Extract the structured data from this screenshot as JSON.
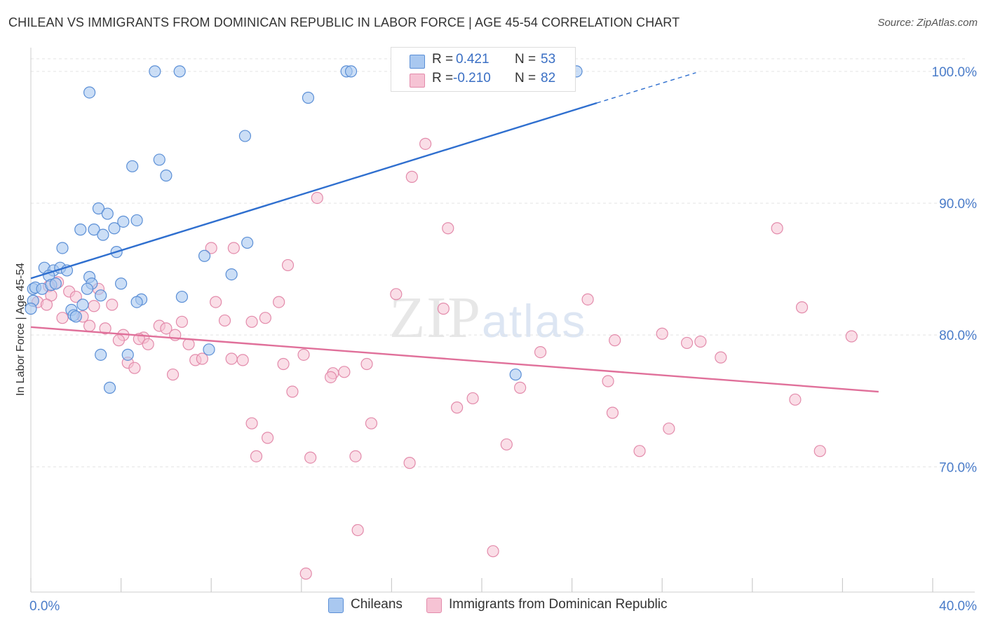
{
  "title": "CHILEAN VS IMMIGRANTS FROM DOMINICAN REPUBLIC IN LABOR FORCE | AGE 45-54 CORRELATION CHART",
  "source": "Source: ZipAtlas.com",
  "watermark": {
    "zip": "ZIP",
    "atlas": "atlas"
  },
  "legend_top": {
    "rows": [
      {
        "r_label": "R =",
        "r_value": "0.421",
        "n_label": "N =",
        "n_value": "53"
      },
      {
        "r_label": "R =",
        "r_value": "-0.210",
        "n_label": "N =",
        "n_value": "82"
      }
    ]
  },
  "legend_bottom": {
    "series1": "Chileans",
    "series2": "Immigrants from Dominican Republic"
  },
  "colors": {
    "series1_fill": "#a9c8f0",
    "series1_stroke": "#5b8fd6",
    "series1_line": "#2f6fcf",
    "series2_fill": "#f6c3d4",
    "series2_stroke": "#e38bab",
    "series2_line": "#e0709a",
    "tick_text": "#4a7cc9",
    "grid": "#e3e3e3"
  },
  "chart_data": {
    "type": "scatter",
    "title": "CHILEAN VS IMMIGRANTS FROM DOMINICAN REPUBLIC IN LABOR FORCE | AGE 45-54 CORRELATION CHART",
    "xlabel": "",
    "ylabel": "In Labor Force | Age 45-54",
    "xlim": [
      0,
      40
    ],
    "ylim": [
      60.5,
      101.8
    ],
    "x_tick_labels": [
      "0.0%",
      "40.0%"
    ],
    "y_ticks": [
      70,
      80,
      90,
      100
    ],
    "y_tick_labels": [
      "70.0%",
      "80.0%",
      "90.0%",
      "100.0%"
    ],
    "grid": true,
    "legend_position": "top-center",
    "series": [
      {
        "name": "Chileans",
        "R": 0.421,
        "N": 53,
        "trend": {
          "x": [
            0,
            25.1
          ],
          "y": [
            84.3,
            97.6
          ],
          "dashed_to": [
            29.5,
            99.9
          ]
        },
        "points": [
          [
            5.5,
            100.0
          ],
          [
            6.6,
            100.0
          ],
          [
            14.0,
            100.0
          ],
          [
            14.2,
            100.0
          ],
          [
            24.2,
            100.0
          ],
          [
            2.6,
            98.4
          ],
          [
            12.3,
            98.0
          ],
          [
            9.5,
            95.1
          ],
          [
            4.5,
            92.8
          ],
          [
            5.7,
            93.3
          ],
          [
            6.0,
            92.1
          ],
          [
            3.0,
            89.6
          ],
          [
            3.4,
            89.2
          ],
          [
            4.1,
            88.6
          ],
          [
            4.7,
            88.7
          ],
          [
            2.2,
            88.0
          ],
          [
            2.8,
            88.0
          ],
          [
            3.2,
            87.6
          ],
          [
            3.7,
            88.1
          ],
          [
            9.6,
            87.0
          ],
          [
            1.4,
            86.6
          ],
          [
            3.8,
            86.3
          ],
          [
            7.7,
            86.0
          ],
          [
            0.6,
            85.1
          ],
          [
            1.0,
            84.9
          ],
          [
            1.3,
            85.1
          ],
          [
            1.6,
            84.9
          ],
          [
            0.8,
            84.5
          ],
          [
            2.6,
            84.4
          ],
          [
            8.9,
            84.6
          ],
          [
            0.1,
            83.5
          ],
          [
            0.2,
            83.6
          ],
          [
            0.5,
            83.5
          ],
          [
            0.9,
            83.8
          ],
          [
            1.1,
            83.9
          ],
          [
            2.7,
            83.9
          ],
          [
            4.0,
            83.9
          ],
          [
            2.5,
            83.5
          ],
          [
            3.1,
            83.0
          ],
          [
            4.9,
            82.7
          ],
          [
            6.7,
            82.9
          ],
          [
            4.7,
            82.5
          ],
          [
            2.3,
            82.3
          ],
          [
            1.8,
            81.9
          ],
          [
            1.9,
            81.5
          ],
          [
            2.0,
            81.4
          ],
          [
            3.1,
            78.5
          ],
          [
            4.3,
            78.5
          ],
          [
            7.9,
            78.9
          ],
          [
            21.5,
            77.0
          ],
          [
            3.5,
            76.0
          ],
          [
            0.1,
            82.6
          ],
          [
            0.0,
            82.0
          ]
        ]
      },
      {
        "name": "Immigrants from Dominican Republic",
        "R": -0.21,
        "N": 82,
        "trend": {
          "x": [
            0,
            37.6
          ],
          "y": [
            80.6,
            75.7
          ]
        },
        "points": [
          [
            17.5,
            94.5
          ],
          [
            16.9,
            92.0
          ],
          [
            12.7,
            90.4
          ],
          [
            18.5,
            88.1
          ],
          [
            33.1,
            88.1
          ],
          [
            8.0,
            86.6
          ],
          [
            9.0,
            86.6
          ],
          [
            11.4,
            85.3
          ],
          [
            1.2,
            84.0
          ],
          [
            0.8,
            83.7
          ],
          [
            3.0,
            83.5
          ],
          [
            1.7,
            83.3
          ],
          [
            0.9,
            83.0
          ],
          [
            2.0,
            82.9
          ],
          [
            16.2,
            83.1
          ],
          [
            0.3,
            82.5
          ],
          [
            0.7,
            82.3
          ],
          [
            3.6,
            82.3
          ],
          [
            2.8,
            82.2
          ],
          [
            8.2,
            82.5
          ],
          [
            11.0,
            82.5
          ],
          [
            24.7,
            82.7
          ],
          [
            18.3,
            82.0
          ],
          [
            34.2,
            82.1
          ],
          [
            1.4,
            81.3
          ],
          [
            2.3,
            81.4
          ],
          [
            8.6,
            81.1
          ],
          [
            9.8,
            81.0
          ],
          [
            10.4,
            81.3
          ],
          [
            6.7,
            81.0
          ],
          [
            5.7,
            80.7
          ],
          [
            6.0,
            80.5
          ],
          [
            2.6,
            80.7
          ],
          [
            3.3,
            80.5
          ],
          [
            4.1,
            80.0
          ],
          [
            5.0,
            79.8
          ],
          [
            3.9,
            79.6
          ],
          [
            4.8,
            79.7
          ],
          [
            6.4,
            80.0
          ],
          [
            5.2,
            79.3
          ],
          [
            7.0,
            79.3
          ],
          [
            28.0,
            80.1
          ],
          [
            29.7,
            79.5
          ],
          [
            29.1,
            79.4
          ],
          [
            25.9,
            79.6
          ],
          [
            36.4,
            79.9
          ],
          [
            22.6,
            78.7
          ],
          [
            7.3,
            78.1
          ],
          [
            7.6,
            78.2
          ],
          [
            8.9,
            78.2
          ],
          [
            9.4,
            78.1
          ],
          [
            12.1,
            78.5
          ],
          [
            11.2,
            77.8
          ],
          [
            14.9,
            77.8
          ],
          [
            13.4,
            77.1
          ],
          [
            13.3,
            76.8
          ],
          [
            13.9,
            77.2
          ],
          [
            30.6,
            78.3
          ],
          [
            4.3,
            77.9
          ],
          [
            4.6,
            77.5
          ],
          [
            6.3,
            77.0
          ],
          [
            25.6,
            76.5
          ],
          [
            21.7,
            76.0
          ],
          [
            11.6,
            75.7
          ],
          [
            19.6,
            75.2
          ],
          [
            18.9,
            74.5
          ],
          [
            33.9,
            75.1
          ],
          [
            25.8,
            74.1
          ],
          [
            9.8,
            73.3
          ],
          [
            15.1,
            73.3
          ],
          [
            28.3,
            72.9
          ],
          [
            10.5,
            72.2
          ],
          [
            21.1,
            71.7
          ],
          [
            10.0,
            70.8
          ],
          [
            12.4,
            70.7
          ],
          [
            14.4,
            70.8
          ],
          [
            16.8,
            70.3
          ],
          [
            27.0,
            71.2
          ],
          [
            35.0,
            71.2
          ],
          [
            14.5,
            65.2
          ],
          [
            20.5,
            63.6
          ],
          [
            12.2,
            61.9
          ]
        ]
      }
    ]
  }
}
